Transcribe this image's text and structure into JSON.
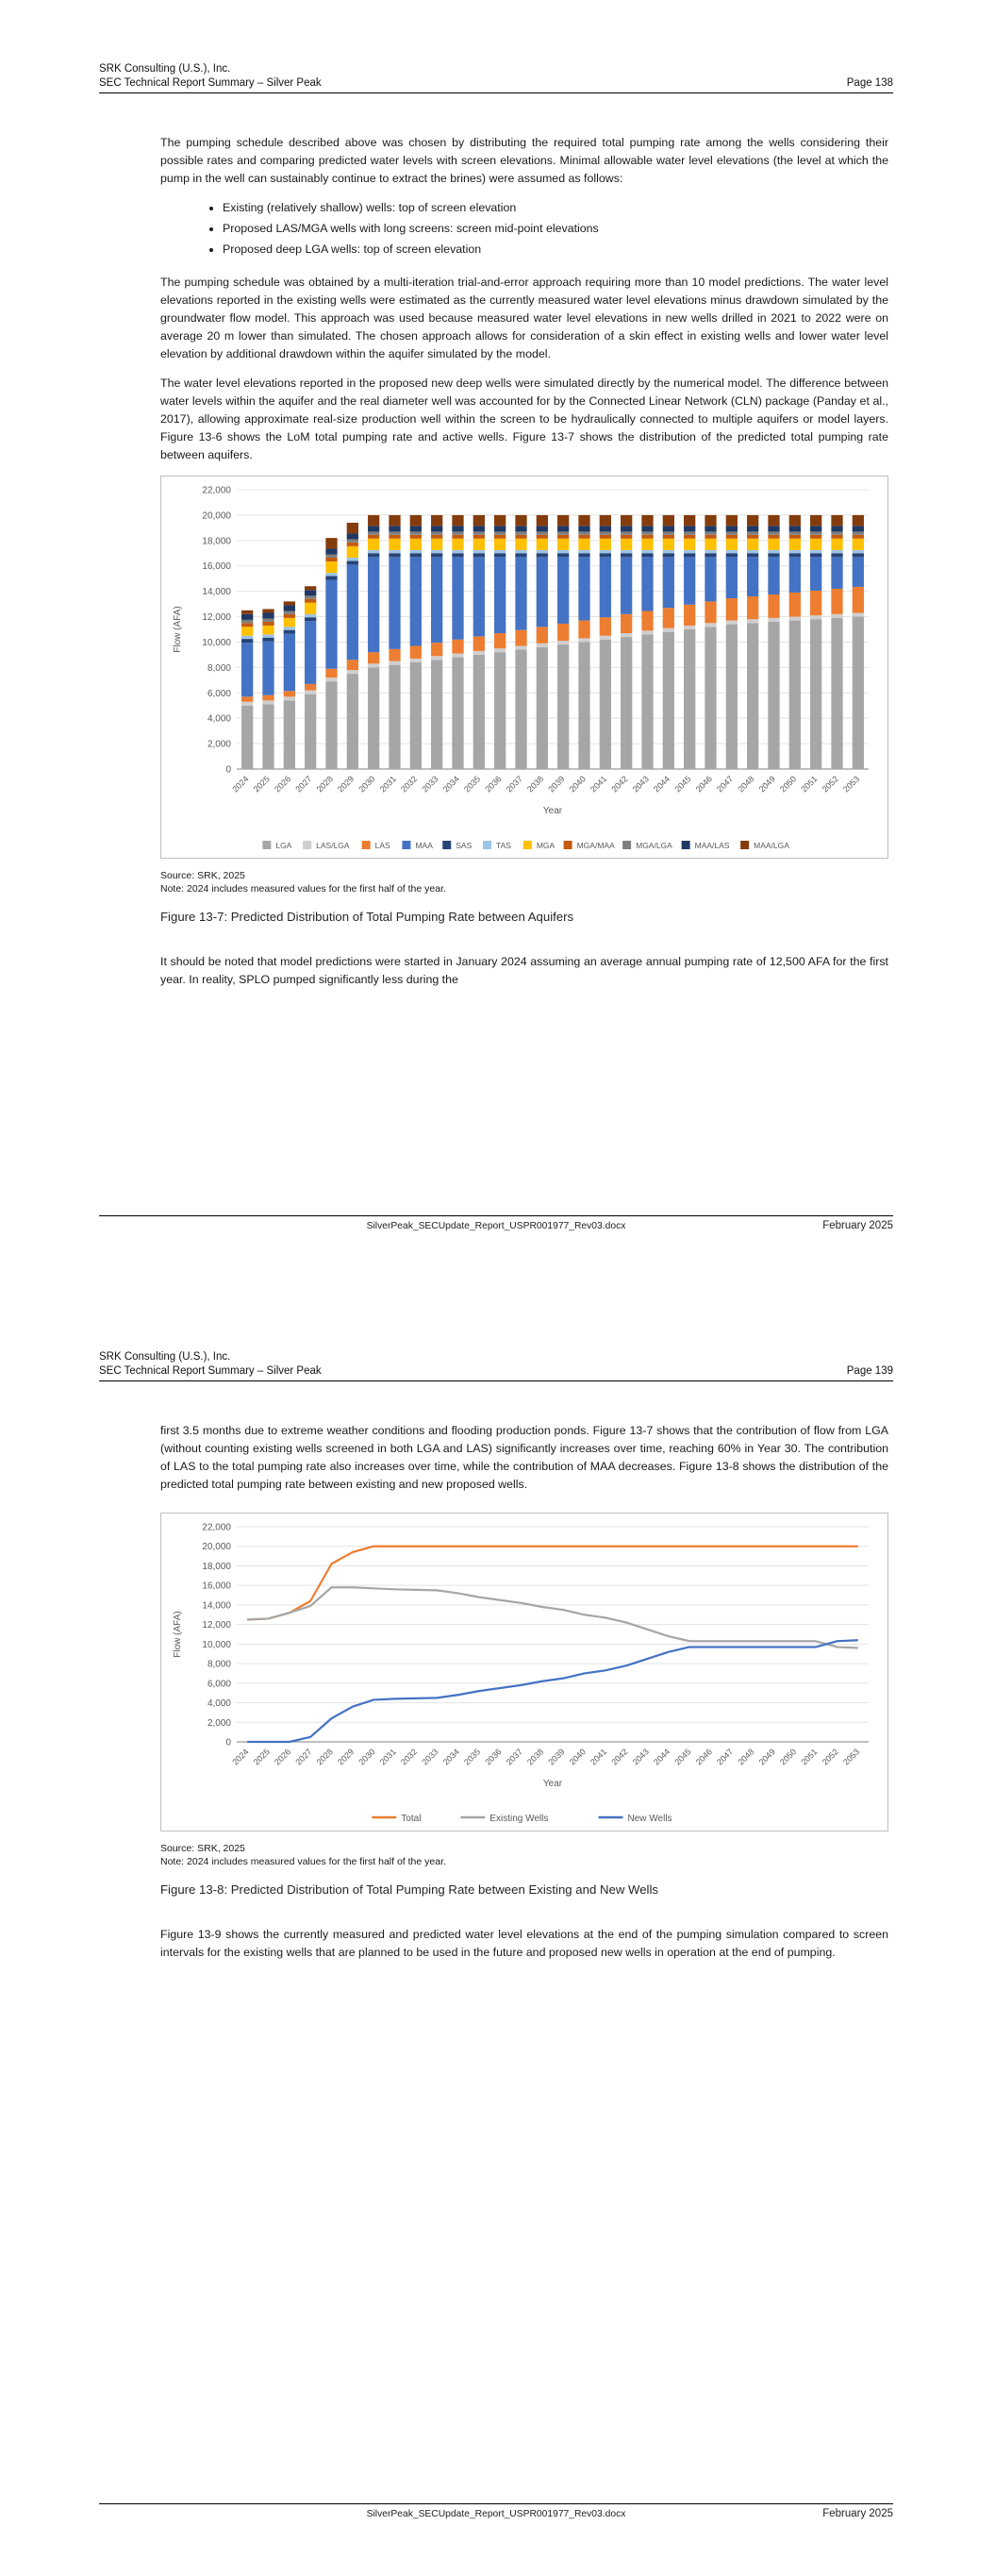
{
  "document": {
    "pages": [
      {
        "header": {
          "line1": "SRK Consulting (U.S.), Inc.",
          "line2": "SEC Technical Report Summary – Silver Peak",
          "page_label": "Page 138"
        },
        "paragraphs": {
          "p1": "The pumping schedule described above was chosen by distributing the required total pumping rate among the wells considering their possible rates and comparing predicted water levels with screen elevations. Minimal allowable water level elevations (the level at which the pump in the well can sustainably continue to extract the brines) were assumed as follows:",
          "p2": "The pumping schedule was obtained by a multi-iteration trial-and-error approach requiring more than 10 model predictions. The water level elevations reported in the existing wells were estimated as the currently measured water level elevations minus drawdown simulated by the groundwater flow model. This approach was used because measured water level elevations in new wells drilled in 2021 to 2022 were on average 20 m lower than simulated. The chosen approach allows for consideration of a skin effect in existing wells and lower water level elevation by additional drawdown within the aquifer simulated by the model.",
          "p3": "The water level elevations reported in the proposed new deep wells were simulated directly by the numerical model. The difference between water levels within the aquifer and the real diameter well was accounted for by the Connected Linear Network (CLN) package (Panday et al., 2017), allowing approximate real-size production well within the screen to be hydraulically connected to multiple aquifers or model layers. Figure 13-6 shows the LoM total pumping rate and active wells. Figure 13-7 shows the distribution of the predicted total pumping rate between aquifers.",
          "p4": "It should be noted that model predictions were started in January 2024 assuming an average annual pumping rate of 12,500 AFA for the first year. In reality, SPLO pumped significantly less during the"
        },
        "bullets": [
          "Existing (relatively shallow) wells: top of screen elevation",
          "Proposed LAS/MGA wells with long screens: screen mid-point elevations",
          "Proposed deep LGA wells: top of screen elevation"
        ],
        "source": "Source: SRK, 2025",
        "note": "Note: 2024 includes measured values for the first half of the year.",
        "figure_caption": "Figure 13-7: Predicted Distribution of Total Pumping Rate between Aquifers",
        "footer": {
          "filename": "SilverPeak_SECUpdate_Report_USPR001977_Rev03.docx",
          "date": "February 2025"
        }
      },
      {
        "header": {
          "line1": "SRK Consulting (U.S.), Inc.",
          "line2": "SEC Technical Report Summary – Silver Peak",
          "page_label": "Page 139"
        },
        "paragraphs": {
          "p1": "first 3.5 months due to extreme weather conditions and flooding production ponds. Figure 13-7 shows that the contribution of flow from LGA (without counting existing wells screened in both LGA and LAS) significantly increases over time, reaching 60% in Year 30. The contribution of LAS to the total pumping rate also increases over time, while the contribution of MAA decreases. Figure 13-8 shows the distribution of the predicted total pumping rate between existing and new proposed wells.",
          "p2": "Figure 13-9 shows the currently measured and predicted water level elevations at the end of the pumping simulation compared to screen intervals for the existing wells that are planned to be used in the future and proposed new wells in operation at the end of pumping."
        },
        "source": "Source: SRK, 2025",
        "note": "Note: 2024 includes measured values for the first half of the year.",
        "figure_caption": "Figure 13-8: Predicted Distribution of Total Pumping Rate between Existing and New Wells",
        "footer": {
          "filename": "SilverPeak_SECUpdate_Report_USPR001977_Rev03.docx",
          "date": "February 2025"
        }
      }
    ]
  },
  "chart_data": [
    {
      "type": "bar",
      "stacked": true,
      "title": "",
      "xlabel": "Year",
      "ylabel": "Flow (AFA)",
      "ylim": [
        0,
        22000
      ],
      "ytick_step": 2000,
      "legend_position": "bottom",
      "grid": true,
      "categories": [
        "2024",
        "2025",
        "2026",
        "2027",
        "2028",
        "2029",
        "2030",
        "2031",
        "2032",
        "2033",
        "2034",
        "2035",
        "2036",
        "2037",
        "2038",
        "2039",
        "2040",
        "2041",
        "2042",
        "2043",
        "2044",
        "2045",
        "2046",
        "2047",
        "2048",
        "2049",
        "2050",
        "2051",
        "2052",
        "2053"
      ],
      "series": [
        {
          "name": "LGA",
          "color": "#a6a6a6",
          "values": [
            5000,
            5100,
            5400,
            5900,
            6900,
            7500,
            8000,
            8200,
            8400,
            8600,
            8800,
            9000,
            9200,
            9400,
            9600,
            9800,
            10000,
            10200,
            10400,
            10600,
            10800,
            11000,
            11200,
            11400,
            11500,
            11600,
            11700,
            11800,
            11900,
            12000
          ]
        },
        {
          "name": "LAS/LGA",
          "color": "#d0cece",
          "values": [
            300,
            300,
            300,
            300,
            300,
            300,
            300,
            300,
            300,
            300,
            300,
            300,
            300,
            300,
            300,
            300,
            300,
            300,
            300,
            300,
            300,
            300,
            300,
            300,
            300,
            300,
            300,
            300,
            300,
            300
          ]
        },
        {
          "name": "LAS",
          "color": "#ed7d31",
          "values": [
            400,
            420,
            450,
            500,
            700,
            800,
            900,
            950,
            1000,
            1050,
            1100,
            1150,
            1200,
            1250,
            1300,
            1350,
            1400,
            1450,
            1500,
            1550,
            1600,
            1650,
            1700,
            1750,
            1800,
            1850,
            1900,
            1950,
            2000,
            2050
          ]
        },
        {
          "name": "MAA",
          "color": "#4472c4",
          "values": [
            4250,
            4230,
            4500,
            4950,
            7000,
            7500,
            7500,
            7250,
            7000,
            6750,
            6500,
            6250,
            6000,
            5750,
            5500,
            5250,
            5000,
            4750,
            4500,
            4250,
            4000,
            3750,
            3500,
            3250,
            3100,
            2950,
            2800,
            2650,
            2500,
            2350
          ]
        },
        {
          "name": "SAS",
          "color": "#264478",
          "values": [
            300,
            300,
            300,
            300,
            300,
            300,
            300,
            300,
            300,
            300,
            300,
            300,
            300,
            300,
            300,
            300,
            300,
            300,
            300,
            300,
            300,
            300,
            300,
            300,
            300,
            300,
            300,
            300,
            300,
            300
          ]
        },
        {
          "name": "TAS",
          "color": "#9dc3e6",
          "values": [
            250,
            250,
            250,
            250,
            250,
            250,
            250,
            250,
            250,
            250,
            250,
            250,
            250,
            250,
            250,
            250,
            250,
            250,
            250,
            250,
            250,
            250,
            250,
            250,
            250,
            250,
            250,
            250,
            250,
            250
          ]
        },
        {
          "name": "MGA",
          "color": "#ffc000",
          "values": [
            700,
            700,
            700,
            900,
            900,
            900,
            900,
            900,
            900,
            900,
            900,
            900,
            900,
            900,
            900,
            900,
            900,
            900,
            900,
            900,
            900,
            900,
            900,
            900,
            900,
            900,
            900,
            900,
            900,
            900
          ]
        },
        {
          "name": "MGA/MAA",
          "color": "#c55a11",
          "values": [
            300,
            300,
            300,
            300,
            300,
            300,
            300,
            300,
            300,
            300,
            300,
            300,
            300,
            300,
            300,
            300,
            300,
            300,
            300,
            300,
            300,
            300,
            300,
            300,
            300,
            300,
            300,
            300,
            300,
            300
          ]
        },
        {
          "name": "MGA/LGA",
          "color": "#7f7f7f",
          "values": [
            250,
            250,
            250,
            250,
            250,
            250,
            250,
            250,
            250,
            250,
            250,
            250,
            250,
            250,
            250,
            250,
            250,
            250,
            250,
            250,
            250,
            250,
            250,
            250,
            250,
            250,
            250,
            250,
            250,
            250
          ]
        },
        {
          "name": "MAA/LAS",
          "color": "#1f3864",
          "values": [
            450,
            450,
            450,
            450,
            450,
            450,
            450,
            450,
            450,
            450,
            450,
            450,
            450,
            450,
            450,
            450,
            450,
            450,
            450,
            450,
            450,
            450,
            450,
            450,
            450,
            450,
            450,
            450,
            450,
            450
          ]
        },
        {
          "name": "MAA/LGA",
          "color": "#843c0c",
          "values": [
            300,
            300,
            300,
            300,
            850,
            850,
            850,
            850,
            850,
            850,
            850,
            850,
            850,
            850,
            850,
            850,
            850,
            850,
            850,
            850,
            850,
            850,
            850,
            850,
            850,
            850,
            850,
            850,
            850,
            850
          ]
        }
      ]
    },
    {
      "type": "line",
      "title": "",
      "xlabel": "Year",
      "ylabel": "Flow (AFA)",
      "ylim": [
        0,
        22000
      ],
      "ytick_step": 2000,
      "legend_position": "bottom",
      "grid": true,
      "categories": [
        "2024",
        "2025",
        "2026",
        "2027",
        "2028",
        "2029",
        "2030",
        "2031",
        "2032",
        "2033",
        "2034",
        "2035",
        "2036",
        "2037",
        "2038",
        "2039",
        "2040",
        "2041",
        "2042",
        "2043",
        "2044",
        "2045",
        "2046",
        "2047",
        "2048",
        "2049",
        "2050",
        "2051",
        "2052",
        "2053"
      ],
      "series": [
        {
          "name": "Total",
          "color": "#ed7d31",
          "values": [
            12500,
            12600,
            13200,
            14400,
            18200,
            19400,
            20000,
            20000,
            20000,
            20000,
            20000,
            20000,
            20000,
            20000,
            20000,
            20000,
            20000,
            20000,
            20000,
            20000,
            20000,
            20000,
            20000,
            20000,
            20000,
            20000,
            20000,
            20000,
            20000,
            20000
          ]
        },
        {
          "name": "Existing Wells",
          "color": "#a6a6a6",
          "values": [
            12500,
            12600,
            13200,
            13900,
            15800,
            15800,
            15700,
            15600,
            15550,
            15500,
            15200,
            14800,
            14500,
            14200,
            13800,
            13500,
            13000,
            12700,
            12200,
            11500,
            10800,
            10300,
            10300,
            10300,
            10300,
            10300,
            10300,
            10300,
            9700,
            9600
          ]
        },
        {
          "name": "New Wells",
          "color": "#4472c4",
          "values": [
            0,
            0,
            0,
            500,
            2400,
            3600,
            4300,
            4400,
            4450,
            4500,
            4800,
            5200,
            5500,
            5800,
            6200,
            6500,
            7000,
            7300,
            7800,
            8500,
            9200,
            9700,
            9700,
            9700,
            9700,
            9700,
            9700,
            9700,
            10300,
            10400
          ]
        }
      ]
    }
  ]
}
